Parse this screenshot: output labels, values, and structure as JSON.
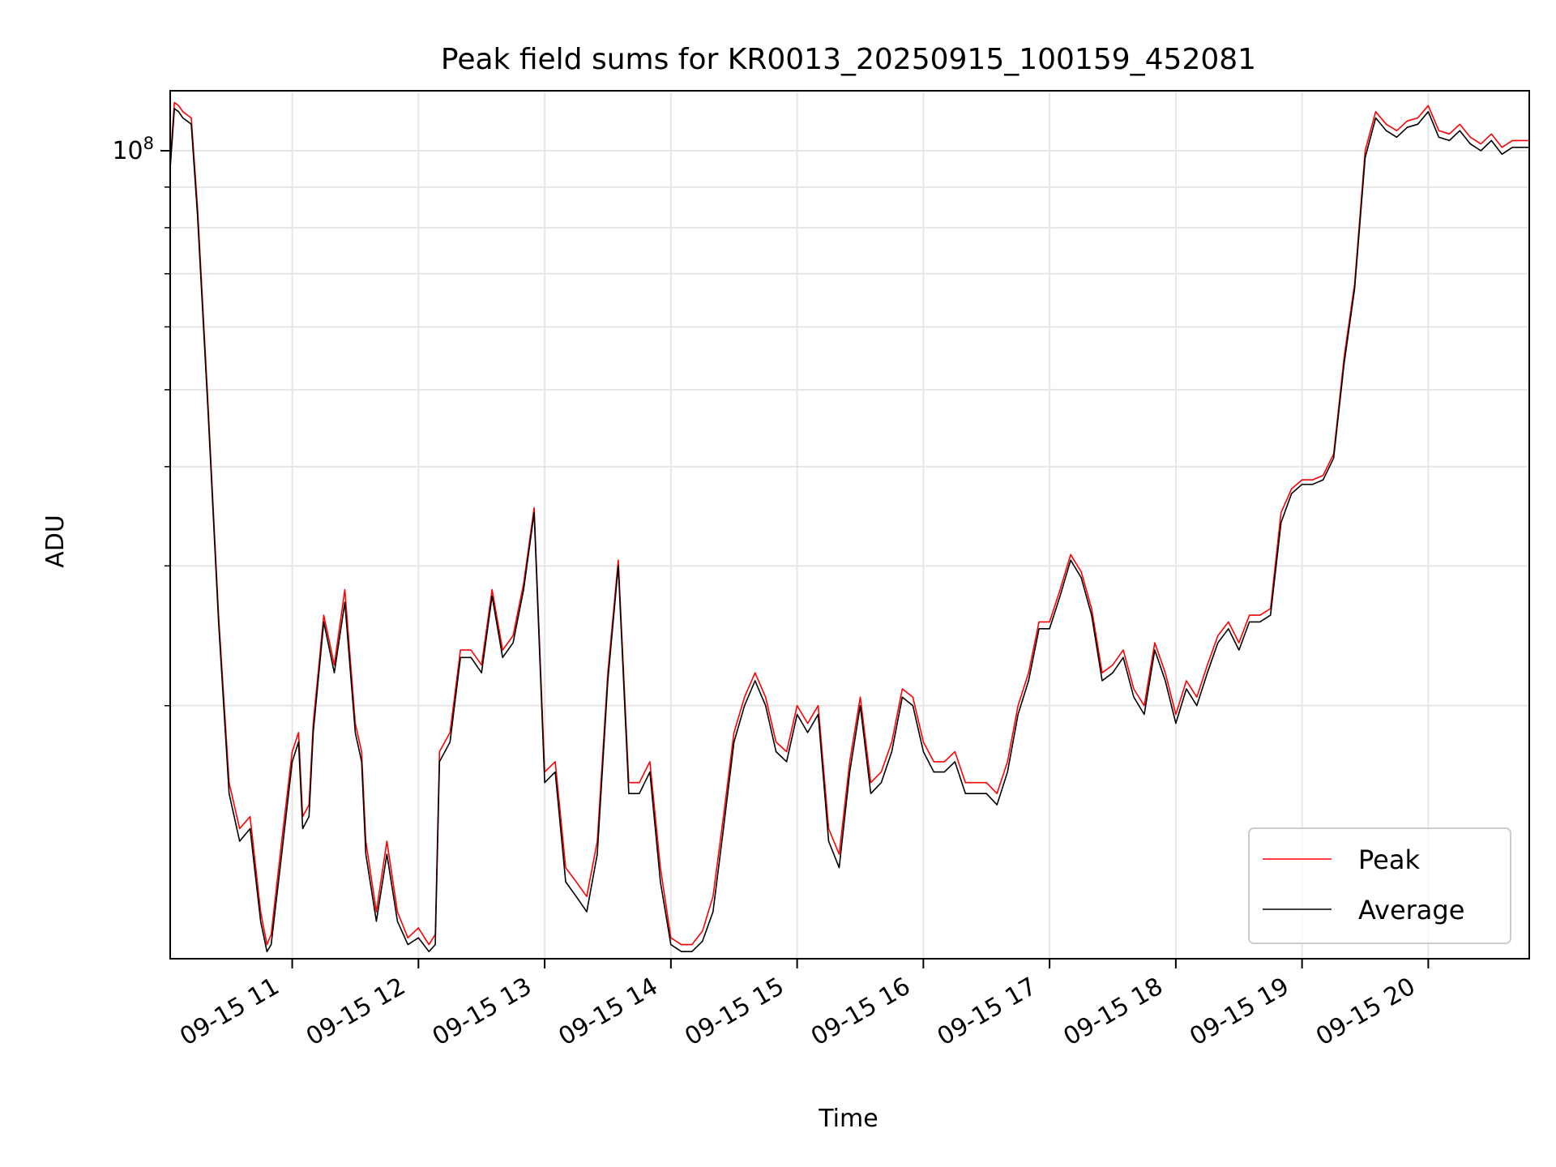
{
  "chart_data": {
    "type": "line",
    "title": "Peak field sums for KR0013_20250915_100159_452081",
    "xlabel": "Time",
    "ylabel": "ADU",
    "y_scale": "log",
    "ylim": [
      9600000,
      119000000
    ],
    "xlim": [
      "2025-09-15 10:02",
      "2025-09-15 20:48"
    ],
    "x_tick_labels": [
      "09-15 11",
      "09-15 12",
      "09-15 13",
      "09-15 14",
      "09-15 15",
      "09-15 16",
      "09-15 17",
      "09-15 18",
      "09-15 19",
      "09-15 20"
    ],
    "x_tick_values": [
      "2025-09-15 11:00",
      "2025-09-15 12:00",
      "2025-09-15 13:00",
      "2025-09-15 14:00",
      "2025-09-15 15:00",
      "2025-09-15 16:00",
      "2025-09-15 17:00",
      "2025-09-15 18:00",
      "2025-09-15 19:00",
      "2025-09-15 20:00"
    ],
    "y_tick_label": "10^8",
    "y_major_ticks": [
      100000000
    ],
    "y_minor_ticks": [
      20000000,
      30000000,
      40000000,
      50000000,
      60000000,
      70000000,
      80000000,
      90000000
    ],
    "grid": true,
    "legend": {
      "position": "lower right",
      "entries": [
        "Peak",
        "Average"
      ]
    },
    "x": [
      "10:02",
      "10:04",
      "10:06",
      "10:08",
      "10:10",
      "10:12",
      "10:15",
      "10:20",
      "10:25",
      "10:30",
      "10:35",
      "10:40",
      "10:45",
      "10:48",
      "10:50",
      "10:55",
      "11:00",
      "11:03",
      "11:05",
      "11:08",
      "11:10",
      "11:15",
      "11:20",
      "11:25",
      "11:30",
      "11:33",
      "11:35",
      "11:40",
      "11:45",
      "11:50",
      "11:55",
      "12:00",
      "12:05",
      "12:08",
      "12:10",
      "12:15",
      "12:20",
      "12:25",
      "12:30",
      "12:35",
      "12:40",
      "12:45",
      "12:50",
      "12:55",
      "13:00",
      "13:05",
      "13:10",
      "13:15",
      "13:20",
      "13:25",
      "13:30",
      "13:35",
      "13:40",
      "13:45",
      "13:50",
      "13:55",
      "14:00",
      "14:05",
      "14:10",
      "14:15",
      "14:20",
      "14:25",
      "14:30",
      "14:35",
      "14:40",
      "14:45",
      "14:50",
      "14:55",
      "15:00",
      "15:05",
      "15:10",
      "15:15",
      "15:20",
      "15:25",
      "15:30",
      "15:35",
      "15:40",
      "15:45",
      "15:50",
      "15:55",
      "16:00",
      "16:05",
      "16:10",
      "16:15",
      "16:20",
      "16:25",
      "16:30",
      "16:35",
      "16:40",
      "16:45",
      "16:50",
      "16:55",
      "17:00",
      "17:05",
      "17:10",
      "17:15",
      "17:20",
      "17:25",
      "17:30",
      "17:35",
      "17:40",
      "17:45",
      "17:50",
      "17:55",
      "18:00",
      "18:05",
      "18:10",
      "18:15",
      "18:20",
      "18:25",
      "18:30",
      "18:35",
      "18:40",
      "18:45",
      "18:50",
      "18:55",
      "19:00",
      "19:05",
      "19:10",
      "19:15",
      "19:20",
      "19:25",
      "19:30",
      "19:35",
      "19:40",
      "19:45",
      "19:50",
      "19:55",
      "20:00",
      "20:05",
      "20:10",
      "20:15",
      "20:20",
      "20:25",
      "20:30",
      "20:35",
      "20:40",
      "20:45",
      "20:48"
    ],
    "series": [
      {
        "name": "Peak",
        "color": "#ff0000",
        "values": [
          97000000,
          115000000,
          114000000,
          112000000,
          111000000,
          110000000,
          85000000,
          48000000,
          26000000,
          16000000,
          14000000,
          14500000,
          11000000,
          10000000,
          10300000,
          13500000,
          17500000,
          18500000,
          14500000,
          15000000,
          19000000,
          26000000,
          22500000,
          28000000,
          19000000,
          17500000,
          13500000,
          11000000,
          13500000,
          11000000,
          10200000,
          10500000,
          10000000,
          10300000,
          17500000,
          18500000,
          23500000,
          23500000,
          22500000,
          28000000,
          23500000,
          24500000,
          28500000,
          35500000,
          16500000,
          17000000,
          12500000,
          12000000,
          11500000,
          13500000,
          22000000,
          30500000,
          16000000,
          16000000,
          17000000,
          12500000,
          10200000,
          10000000,
          10000000,
          10400000,
          11500000,
          14500000,
          18500000,
          20500000,
          22000000,
          20500000,
          18000000,
          17500000,
          20000000,
          19000000,
          20000000,
          14000000,
          13000000,
          17000000,
          20500000,
          16000000,
          16500000,
          18000000,
          21000000,
          20500000,
          18000000,
          17000000,
          17000000,
          17500000,
          16000000,
          16000000,
          16000000,
          15500000,
          17000000,
          20000000,
          22000000,
          25500000,
          25500000,
          28000000,
          31000000,
          29500000,
          26500000,
          22000000,
          22500000,
          23500000,
          21000000,
          20000000,
          24000000,
          22000000,
          19500000,
          21500000,
          20500000,
          22500000,
          24500000,
          25500000,
          24000000,
          26000000,
          26000000,
          26500000,
          35000000,
          37500000,
          38500000,
          38500000,
          39000000,
          41500000,
          55000000,
          68000000,
          100000000,
          112000000,
          108000000,
          106000000,
          109000000,
          110000000,
          114000000,
          106000000,
          105000000,
          108000000,
          104000000,
          102000000,
          105000000,
          101000000,
          103000000,
          103000000,
          103000000
        ]
      },
      {
        "name": "Average",
        "color": "#000000",
        "values": [
          95000000,
          113000000,
          112000000,
          110000000,
          109000000,
          108000000,
          83000000,
          47000000,
          25500000,
          15500000,
          13500000,
          14000000,
          10700000,
          9800000,
          10000000,
          13000000,
          17000000,
          18000000,
          14000000,
          14500000,
          18500000,
          25500000,
          22000000,
          27000000,
          18500000,
          17000000,
          13000000,
          10700000,
          13000000,
          10700000,
          10000000,
          10200000,
          9800000,
          10000000,
          17000000,
          18000000,
          23000000,
          23000000,
          22000000,
          27500000,
          23000000,
          24000000,
          28000000,
          35000000,
          16000000,
          16500000,
          12000000,
          11500000,
          11000000,
          13000000,
          21500000,
          30000000,
          15500000,
          15500000,
          16500000,
          12000000,
          10000000,
          9800000,
          9800000,
          10100000,
          11000000,
          14000000,
          18000000,
          20000000,
          21500000,
          20000000,
          17500000,
          17000000,
          19500000,
          18500000,
          19500000,
          13500000,
          12500000,
          16500000,
          20000000,
          15500000,
          16000000,
          17500000,
          20500000,
          20000000,
          17500000,
          16500000,
          16500000,
          17000000,
          15500000,
          15500000,
          15500000,
          15000000,
          16500000,
          19500000,
          21500000,
          25000000,
          25000000,
          27500000,
          30500000,
          29000000,
          26000000,
          21500000,
          22000000,
          23000000,
          20500000,
          19500000,
          23500000,
          21500000,
          19000000,
          21000000,
          20000000,
          22000000,
          24000000,
          25000000,
          23500000,
          25500000,
          25500000,
          26000000,
          34000000,
          37000000,
          38000000,
          38000000,
          38500000,
          41000000,
          54000000,
          67000000,
          98000000,
          110000000,
          106000000,
          104000000,
          107000000,
          108000000,
          112000000,
          104000000,
          103000000,
          106000000,
          102000000,
          100000000,
          103000000,
          99000000,
          101000000,
          101000000,
          101000000
        ]
      }
    ]
  }
}
